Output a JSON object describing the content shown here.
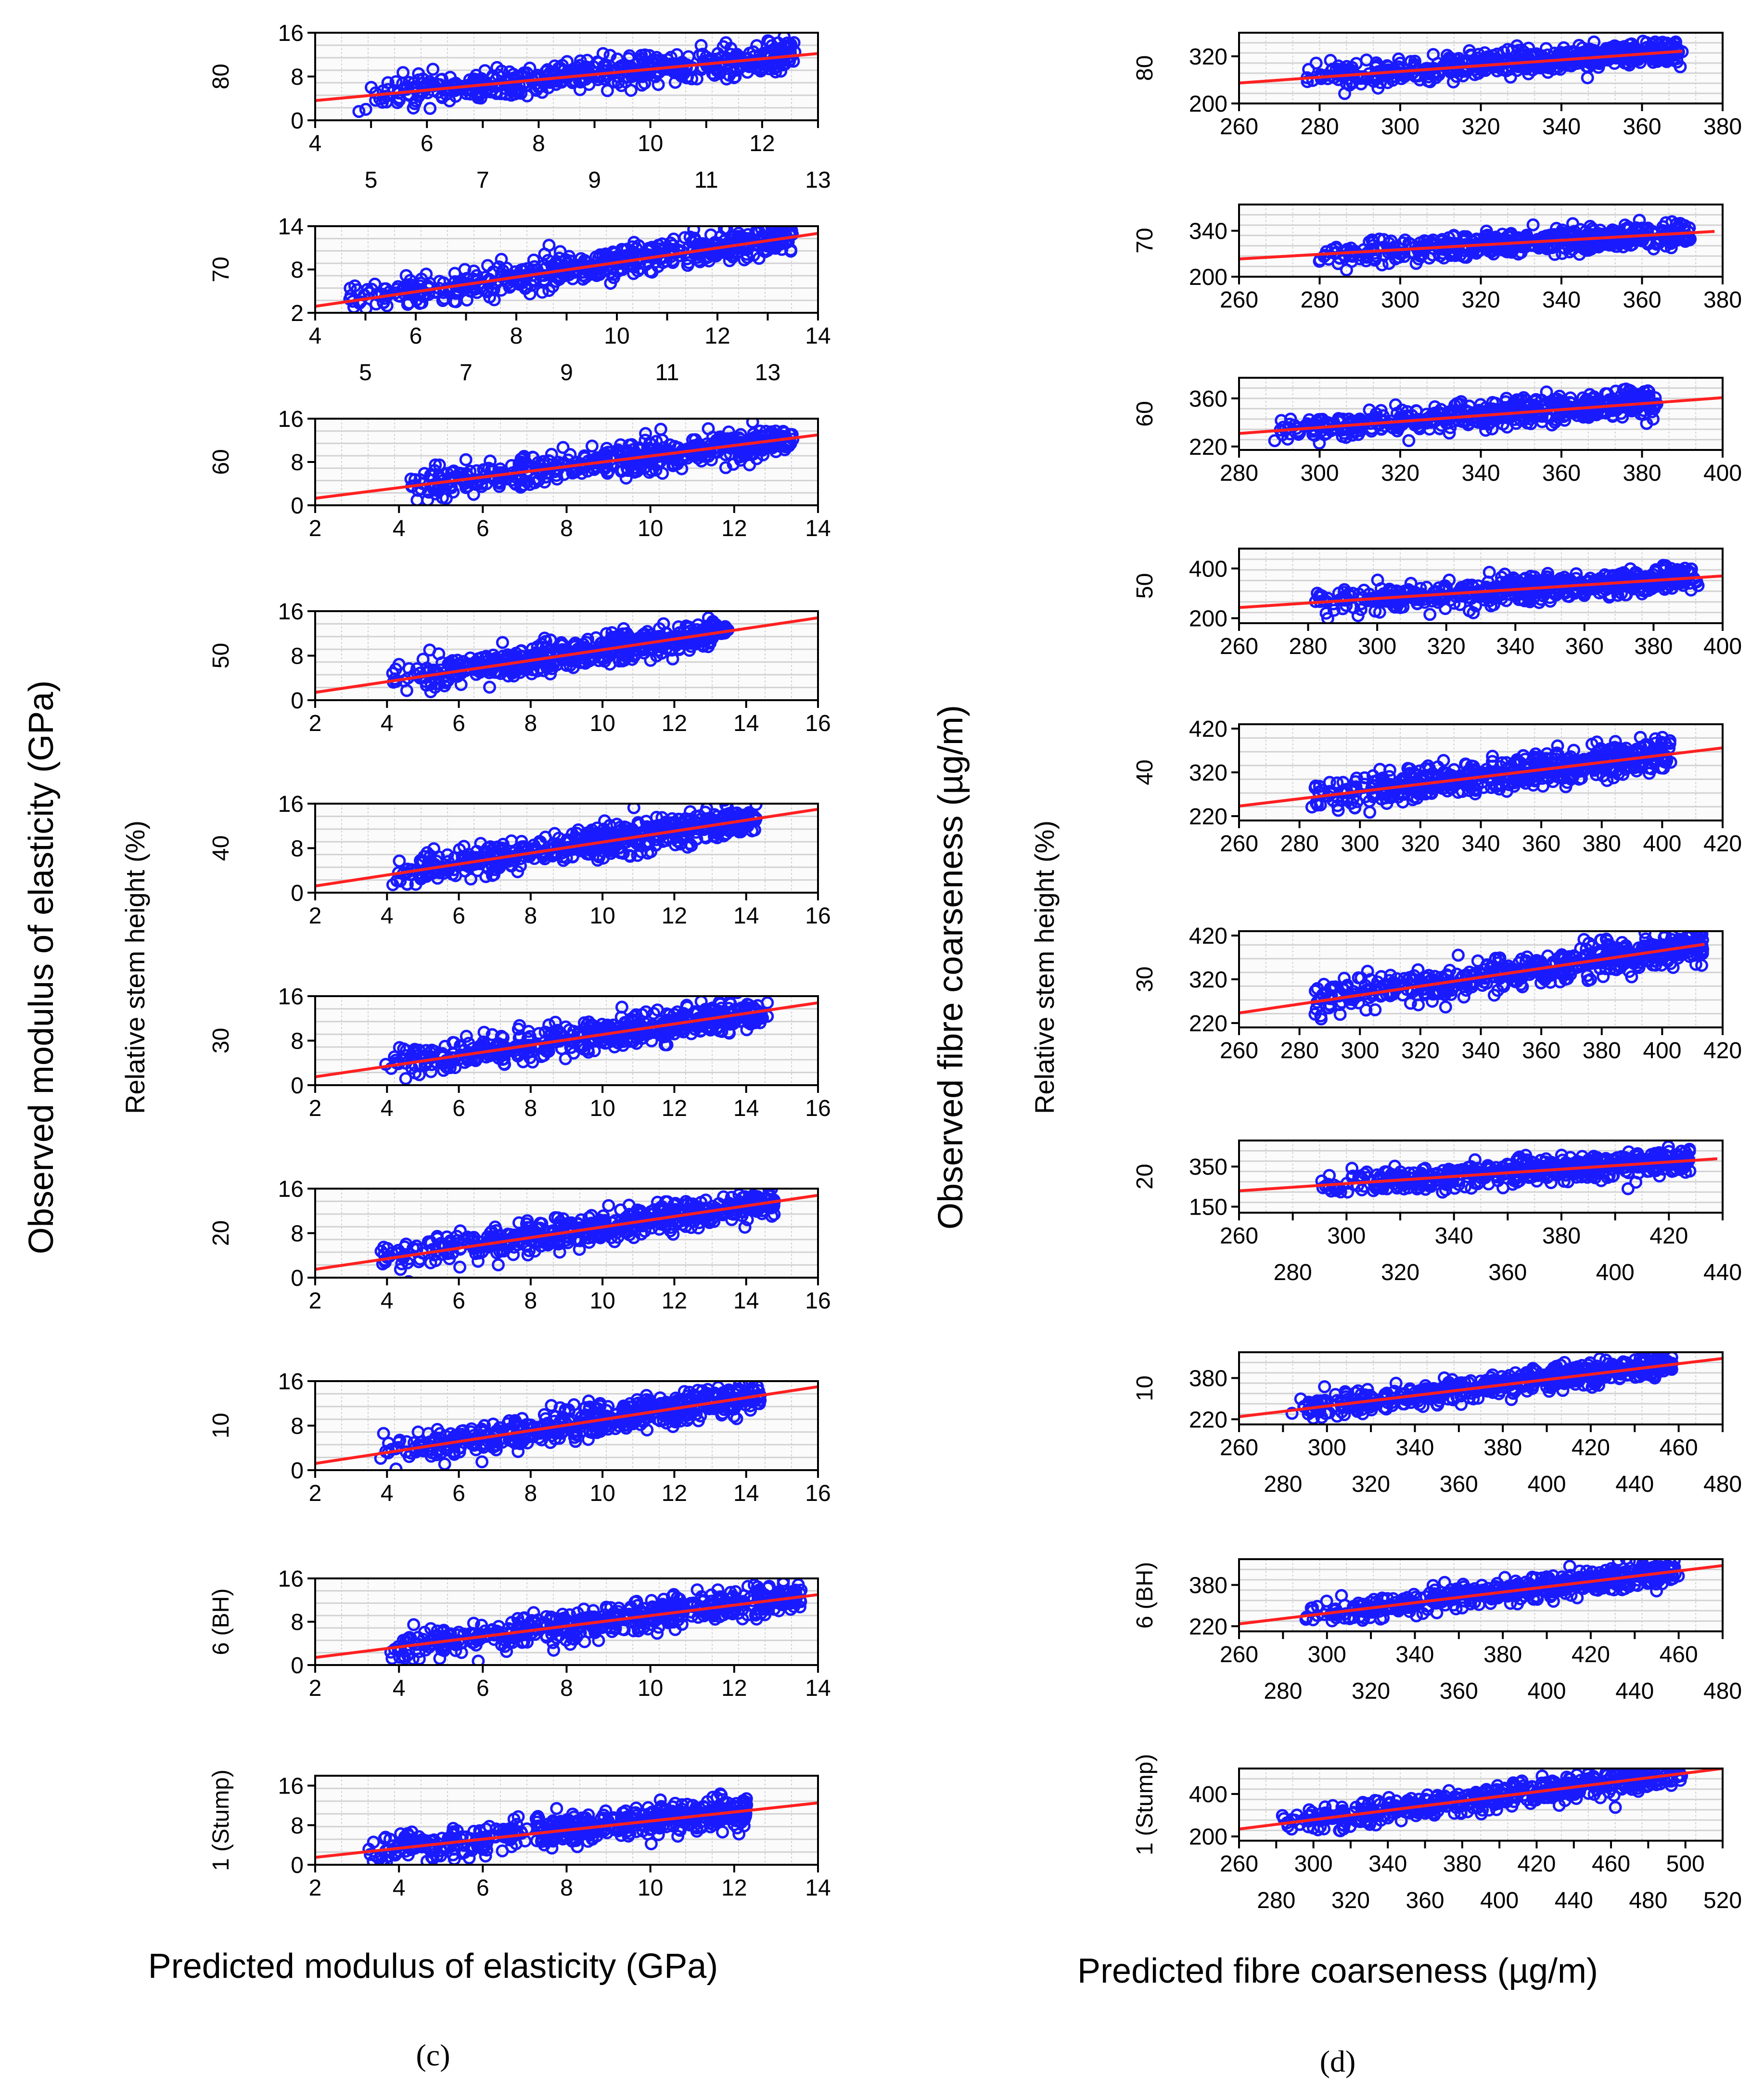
{
  "panel_c": {
    "caption": "(c)",
    "xlabel": "Predicted modulus of elasticity (GPa)",
    "ylabel": "Observed modulus of elasticity (GPa)",
    "row_title": "Relative stem height (%)"
  },
  "panel_d": {
    "caption": "(d)",
    "xlabel": "Predicted fibre coarseness (µg/m)",
    "ylabel": "Observed fibre coarseness (µg/m)",
    "row_title": "Relative stem height (%)"
  },
  "colors": {
    "points": "#1a1aff",
    "fit_line": "#ff2020",
    "grid": "#d2d2d2",
    "frame": "#000000"
  },
  "chart_data": [
    {
      "id": "c80",
      "panel": "c",
      "row_label": "80",
      "type": "scatter",
      "xlim": [
        4,
        13
      ],
      "ylim": [
        0,
        16
      ],
      "xticks": [
        4,
        5,
        6,
        7,
        8,
        9,
        10,
        11,
        12,
        13
      ],
      "yticks": [
        0,
        8,
        16
      ],
      "xtick_labels": [
        "4",
        "5",
        "6",
        "7",
        "8",
        "9",
        "10",
        "11",
        "12",
        "13"
      ],
      "ytick_labels": [
        "0",
        "8",
        "16"
      ],
      "point_range": [
        4.7,
        12.6
      ],
      "fit_line": [
        [
          4,
          3.6
        ],
        [
          13,
          12.2
        ]
      ]
    },
    {
      "id": "c70",
      "panel": "c",
      "row_label": "70",
      "type": "scatter",
      "xlim": [
        4,
        14
      ],
      "ylim": [
        2,
        14
      ],
      "xticks": [
        4,
        5,
        6,
        7,
        8,
        9,
        10,
        11,
        12,
        13,
        14
      ],
      "yticks": [
        2,
        8,
        14
      ],
      "xtick_labels": [
        "4",
        "5",
        "6",
        "7",
        "8",
        "9",
        "10",
        "11",
        "12",
        "13",
        "14"
      ],
      "ytick_labels": [
        "2",
        "8",
        "14"
      ],
      "point_range": [
        4.6,
        13.5
      ],
      "fit_line": [
        [
          4,
          2.9
        ],
        [
          14,
          13.0
        ]
      ]
    },
    {
      "id": "c60",
      "panel": "c",
      "row_label": "60",
      "type": "scatter",
      "xlim": [
        2,
        14
      ],
      "ylim": [
        0,
        16
      ],
      "xticks": [
        2,
        4,
        6,
        8,
        10,
        12,
        14
      ],
      "yticks": [
        0,
        8,
        16
      ],
      "xtick_labels": [
        "2",
        "4",
        "6",
        "8",
        "10",
        "12",
        "14"
      ],
      "ytick_labels": [
        "0",
        "8",
        "16"
      ],
      "point_range": [
        4.2,
        13.4
      ],
      "fit_line": [
        [
          2,
          1.3
        ],
        [
          14,
          13.0
        ]
      ]
    },
    {
      "id": "c50",
      "panel": "c",
      "row_label": "50",
      "type": "scatter",
      "xlim": [
        2,
        16
      ],
      "ylim": [
        0,
        16
      ],
      "xticks": [
        2,
        4,
        6,
        8,
        10,
        12,
        14,
        16
      ],
      "yticks": [
        0,
        8,
        16
      ],
      "xtick_labels": [
        "2",
        "4",
        "6",
        "8",
        "10",
        "12",
        "14",
        "16"
      ],
      "ytick_labels": [
        "0",
        "8",
        "16"
      ],
      "point_range": [
        4.1,
        13.5
      ],
      "fit_line": [
        [
          2,
          1.4
        ],
        [
          16,
          14.8
        ]
      ]
    },
    {
      "id": "c40",
      "panel": "c",
      "row_label": "40",
      "type": "scatter",
      "xlim": [
        2,
        16
      ],
      "ylim": [
        0,
        16
      ],
      "xticks": [
        2,
        4,
        6,
        8,
        10,
        12,
        14,
        16
      ],
      "yticks": [
        0,
        8,
        16
      ],
      "xtick_labels": [
        "2",
        "4",
        "6",
        "8",
        "10",
        "12",
        "14",
        "16"
      ],
      "ytick_labels": [
        "0",
        "8",
        "16"
      ],
      "point_range": [
        3.9,
        14.3
      ],
      "fit_line": [
        [
          2,
          1.2
        ],
        [
          16,
          15.0
        ]
      ]
    },
    {
      "id": "c30",
      "panel": "c",
      "row_label": "30",
      "type": "scatter",
      "xlim": [
        2,
        16
      ],
      "ylim": [
        0,
        16
      ],
      "xticks": [
        2,
        4,
        6,
        8,
        10,
        12,
        14,
        16
      ],
      "yticks": [
        0,
        8,
        16
      ],
      "xtick_labels": [
        "2",
        "4",
        "6",
        "8",
        "10",
        "12",
        "14",
        "16"
      ],
      "ytick_labels": [
        "0",
        "8",
        "16"
      ],
      "point_range": [
        3.9,
        14.6
      ],
      "fit_line": [
        [
          2,
          1.5
        ],
        [
          16,
          14.8
        ]
      ]
    },
    {
      "id": "c20",
      "panel": "c",
      "row_label": "20",
      "type": "scatter",
      "xlim": [
        2,
        16
      ],
      "ylim": [
        0,
        16
      ],
      "xticks": [
        2,
        4,
        6,
        8,
        10,
        12,
        14,
        16
      ],
      "yticks": [
        0,
        8,
        16
      ],
      "xtick_labels": [
        "2",
        "4",
        "6",
        "8",
        "10",
        "12",
        "14",
        "16"
      ],
      "ytick_labels": [
        "0",
        "8",
        "16"
      ],
      "point_range": [
        3.7,
        14.8
      ],
      "fit_line": [
        [
          2,
          1.5
        ],
        [
          16,
          14.8
        ]
      ]
    },
    {
      "id": "c10",
      "panel": "c",
      "row_label": "10",
      "type": "scatter",
      "xlim": [
        2,
        16
      ],
      "ylim": [
        0,
        16
      ],
      "xticks": [
        2,
        4,
        6,
        8,
        10,
        12,
        14,
        16
      ],
      "yticks": [
        0,
        8,
        16
      ],
      "xtick_labels": [
        "2",
        "4",
        "6",
        "8",
        "10",
        "12",
        "14",
        "16"
      ],
      "ytick_labels": [
        "0",
        "8",
        "16"
      ],
      "point_range": [
        3.7,
        14.4
      ],
      "fit_line": [
        [
          2,
          1.2
        ],
        [
          16,
          15.0
        ]
      ]
    },
    {
      "id": "c6",
      "panel": "c",
      "row_label": "6 (BH)",
      "type": "scatter",
      "xlim": [
        2,
        14
      ],
      "ylim": [
        0,
        16
      ],
      "xticks": [
        2,
        4,
        6,
        8,
        10,
        12,
        14
      ],
      "yticks": [
        0,
        8,
        16
      ],
      "xtick_labels": [
        "2",
        "4",
        "6",
        "8",
        "10",
        "12",
        "14"
      ],
      "ytick_labels": [
        "0",
        "8",
        "16"
      ],
      "point_range": [
        3.7,
        13.6
      ],
      "fit_line": [
        [
          2,
          1.4
        ],
        [
          14,
          13.0
        ]
      ]
    },
    {
      "id": "c1",
      "panel": "c",
      "row_label": "1 (Stump)",
      "type": "scatter",
      "xlim": [
        2,
        14
      ],
      "ylim": [
        0,
        18
      ],
      "xticks": [
        2,
        4,
        6,
        8,
        10,
        12,
        14
      ],
      "yticks": [
        0,
        8,
        16
      ],
      "xtick_labels": [
        "2",
        "4",
        "6",
        "8",
        "10",
        "12",
        "14"
      ],
      "ytick_labels": [
        "0",
        "8",
        "16"
      ],
      "point_range": [
        3.2,
        12.3
      ],
      "fit_line": [
        [
          2,
          1.5
        ],
        [
          14,
          12.5
        ]
      ]
    },
    {
      "id": "d80",
      "panel": "d",
      "row_label": "80",
      "type": "scatter",
      "xlim": [
        260,
        380
      ],
      "ylim": [
        200,
        380
      ],
      "xticks": [
        260,
        280,
        300,
        320,
        340,
        360,
        380
      ],
      "yticks": [
        200,
        320
      ],
      "xtick_labels": [
        "260",
        "280",
        "300",
        "320",
        "340",
        "360",
        "380"
      ],
      "ytick_labels": [
        "200",
        "320"
      ],
      "point_range": [
        276,
        370
      ],
      "fit_line": [
        [
          260,
          252
        ],
        [
          370,
          333
        ]
      ]
    },
    {
      "id": "d70",
      "panel": "d",
      "row_label": "70",
      "type": "scatter",
      "xlim": [
        260,
        380
      ],
      "ylim": [
        200,
        420
      ],
      "xticks": [
        260,
        280,
        300,
        320,
        340,
        360,
        380
      ],
      "yticks": [
        200,
        340
      ],
      "xtick_labels": [
        "260",
        "280",
        "300",
        "320",
        "340",
        "360",
        "380"
      ],
      "ytick_labels": [
        "200",
        "340"
      ],
      "point_range": [
        279,
        372
      ],
      "fit_line": [
        [
          260,
          254
        ],
        [
          378,
          338
        ]
      ]
    },
    {
      "id": "d60",
      "panel": "d",
      "row_label": "60",
      "type": "scatter",
      "xlim": [
        280,
        400
      ],
      "ylim": [
        210,
        420
      ],
      "xticks": [
        280,
        300,
        320,
        340,
        360,
        380,
        400
      ],
      "yticks": [
        220,
        360
      ],
      "xtick_labels": [
        "280",
        "300",
        "320",
        "340",
        "360",
        "380",
        "400"
      ],
      "ytick_labels": [
        "220",
        "360"
      ],
      "point_range": [
        288,
        384
      ],
      "fit_line": [
        [
          280,
          258
        ],
        [
          400,
          362
        ]
      ]
    },
    {
      "id": "d50",
      "panel": "d",
      "row_label": "50",
      "type": "scatter",
      "xlim": [
        260,
        400
      ],
      "ylim": [
        180,
        480
      ],
      "xticks": [
        260,
        280,
        300,
        320,
        340,
        360,
        380,
        400
      ],
      "yticks": [
        200,
        400
      ],
      "xtick_labels": [
        "260",
        "280",
        "300",
        "320",
        "340",
        "360",
        "380",
        "400"
      ],
      "ytick_labels": [
        "200",
        "400"
      ],
      "point_range": [
        282,
        393
      ],
      "fit_line": [
        [
          260,
          243
        ],
        [
          400,
          370
        ]
      ]
    },
    {
      "id": "d40",
      "panel": "d",
      "row_label": "40",
      "type": "scatter",
      "xlim": [
        260,
        420
      ],
      "ylim": [
        210,
        430
      ],
      "xticks": [
        260,
        280,
        300,
        320,
        340,
        360,
        380,
        400,
        420
      ],
      "yticks": [
        220,
        320,
        420
      ],
      "xtick_labels": [
        "260",
        "280",
        "300",
        "320",
        "340",
        "360",
        "380",
        "400",
        "420"
      ],
      "ytick_labels": [
        "220",
        "320",
        "420"
      ],
      "point_range": [
        284,
        403
      ],
      "fit_line": [
        [
          260,
          243
        ],
        [
          420,
          376
        ]
      ]
    },
    {
      "id": "d30",
      "panel": "d",
      "row_label": "30",
      "type": "scatter",
      "xlim": [
        260,
        420
      ],
      "ylim": [
        210,
        430
      ],
      "xticks": [
        260,
        280,
        300,
        320,
        340,
        360,
        380,
        400,
        420
      ],
      "yticks": [
        220,
        320,
        420
      ],
      "xtick_labels": [
        "260",
        "280",
        "300",
        "320",
        "340",
        "360",
        "380",
        "400",
        "420"
      ],
      "ytick_labels": [
        "220",
        "320",
        "420"
      ],
      "point_range": [
        284,
        414
      ],
      "fit_line": [
        [
          260,
          243
        ],
        [
          414,
          400
        ]
      ]
    },
    {
      "id": "d20",
      "panel": "d",
      "row_label": "20",
      "type": "scatter",
      "xlim": [
        260,
        440
      ],
      "ylim": [
        120,
        480
      ],
      "xticks": [
        260,
        280,
        300,
        320,
        340,
        360,
        380,
        400,
        420,
        440
      ],
      "yticks": [
        150,
        350
      ],
      "xtick_labels": [
        "260",
        "280",
        "300",
        "320",
        "340",
        "360",
        "380",
        "400",
        "420",
        "440"
      ],
      "ytick_labels": [
        "150",
        "350"
      ],
      "point_range": [
        290,
        428
      ],
      "fit_line": [
        [
          260,
          229
        ],
        [
          438,
          389
        ]
      ]
    },
    {
      "id": "d10",
      "panel": "d",
      "row_label": "10",
      "type": "scatter",
      "xlim": [
        260,
        480
      ],
      "ylim": [
        200,
        480
      ],
      "xticks": [
        260,
        280,
        300,
        320,
        340,
        360,
        380,
        400,
        420,
        440,
        460,
        480
      ],
      "yticks": [
        220,
        380
      ],
      "xtick_labels": [
        "260",
        "280",
        "300",
        "320",
        "340",
        "360",
        "380",
        "400",
        "420",
        "440",
        "460",
        "480"
      ],
      "ytick_labels": [
        "220",
        "380"
      ],
      "point_range": [
        283,
        457
      ],
      "fit_line": [
        [
          260,
          230
        ],
        [
          480,
          456
        ]
      ]
    },
    {
      "id": "d6",
      "panel": "d",
      "row_label": "6 (BH)",
      "type": "scatter",
      "xlim": [
        260,
        480
      ],
      "ylim": [
        200,
        480
      ],
      "xticks": [
        260,
        280,
        300,
        320,
        340,
        360,
        380,
        400,
        420,
        440,
        460,
        480
      ],
      "yticks": [
        220,
        380
      ],
      "xtick_labels": [
        "260",
        "280",
        "300",
        "320",
        "340",
        "360",
        "380",
        "400",
        "420",
        "440",
        "460",
        "480"
      ],
      "ytick_labels": [
        "220",
        "380"
      ],
      "point_range": [
        290,
        460
      ],
      "fit_line": [
        [
          260,
          229
        ],
        [
          480,
          455
        ]
      ]
    },
    {
      "id": "d1",
      "panel": "d",
      "row_label": "1 (Stump)",
      "type": "scatter",
      "xlim": [
        260,
        520
      ],
      "ylim": [
        180,
        520
      ],
      "xticks": [
        260,
        280,
        300,
        320,
        340,
        360,
        380,
        400,
        420,
        440,
        460,
        480,
        500,
        520
      ],
      "yticks": [
        200,
        400
      ],
      "xtick_labels": [
        "260",
        "280",
        "300",
        "320",
        "340",
        "360",
        "380",
        "400",
        "420",
        "440",
        "460",
        "480",
        "500",
        "520"
      ],
      "ytick_labels": [
        "200",
        "400"
      ],
      "point_range": [
        283,
        500
      ],
      "fit_line": [
        [
          260,
          235
        ],
        [
          520,
          520
        ]
      ]
    }
  ]
}
